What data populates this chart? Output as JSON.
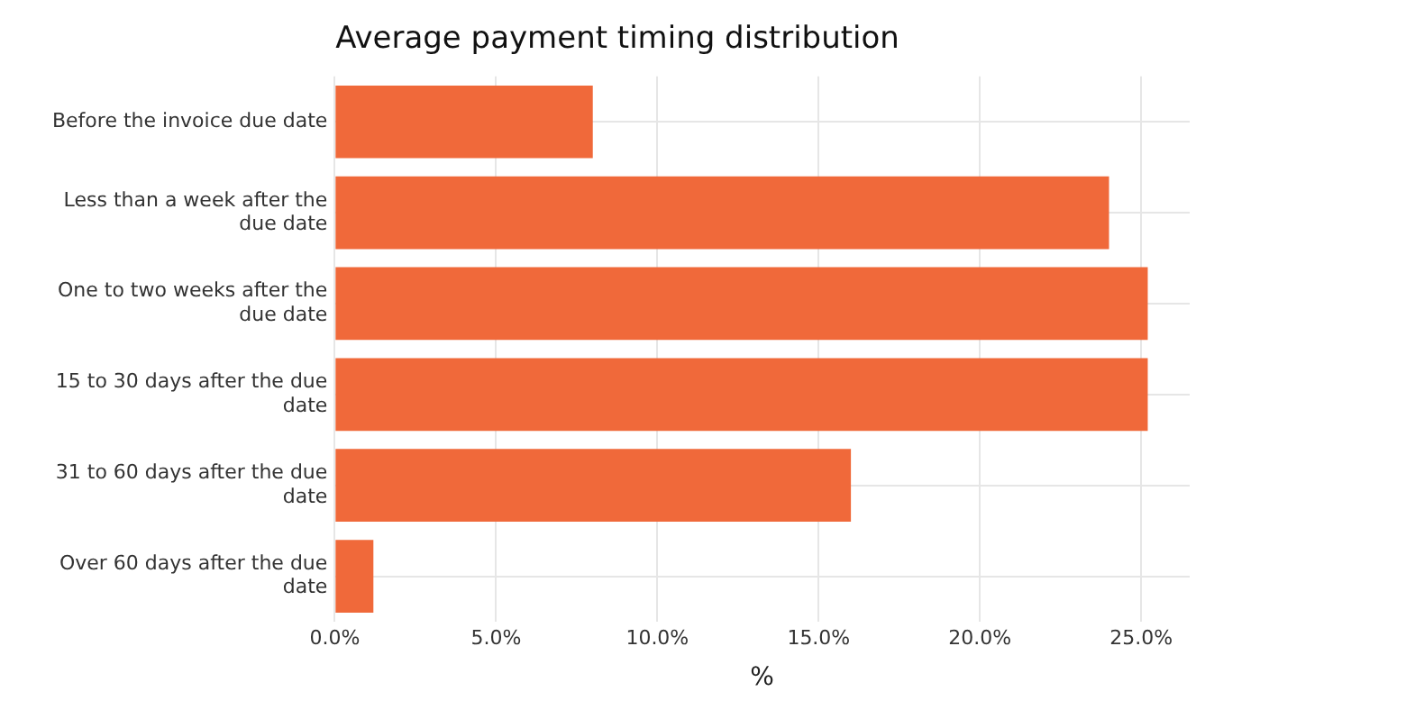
{
  "chart_data": {
    "type": "bar",
    "orientation": "horizontal",
    "title": "Average payment timing distribution",
    "xlabel": "%",
    "categories": [
      "Before the invoice due date",
      "Less than a week after the due date",
      "One to two weeks after the due date",
      "15 to 30 days after the due date",
      "31 to 60 days after the due date",
      "Over 60 days after the due date"
    ],
    "values": [
      8.0,
      24.0,
      25.2,
      25.2,
      16.0,
      1.2
    ],
    "color": "#f0693a",
    "xlim": [
      0,
      26.5
    ],
    "xticks": [
      {
        "value": 0,
        "label": "0.0%"
      },
      {
        "value": 5,
        "label": "5.0%"
      },
      {
        "value": 10,
        "label": "10.0%"
      },
      {
        "value": 15,
        "label": "15.0%"
      },
      {
        "value": 20,
        "label": "20.0%"
      },
      {
        "value": 25,
        "label": "25.0%"
      }
    ],
    "grid": true,
    "legend": false
  }
}
